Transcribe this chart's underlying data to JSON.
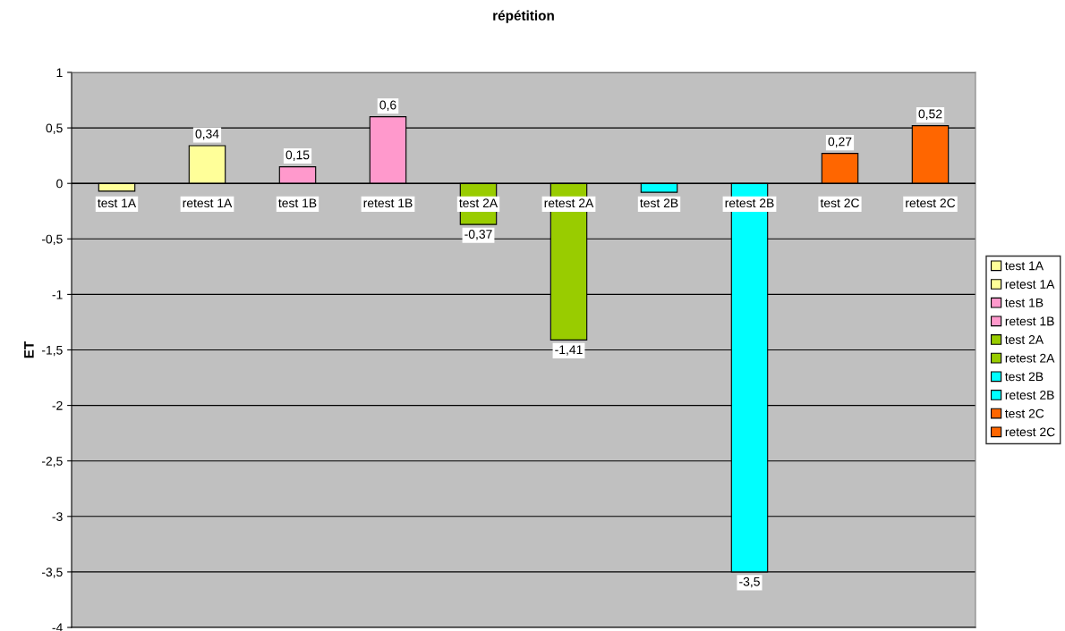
{
  "chart_data": {
    "type": "bar",
    "title": "répétition",
    "ylabel": "ET",
    "categories": [
      null
    ],
    "series": [
      {
        "name": "test 1A",
        "color": "#ffff99",
        "values": [
          -0.07
        ],
        "value_labels": [
          null
        ]
      },
      {
        "name": "retest 1A",
        "color": "#ffff99",
        "values": [
          0.34
        ],
        "value_labels": [
          "0,34"
        ]
      },
      {
        "name": "test 1B",
        "color": "#ff99cc",
        "values": [
          0.15
        ],
        "value_labels": [
          "0,15"
        ]
      },
      {
        "name": "retest 1B",
        "color": "#ff99cc",
        "values": [
          0.6
        ],
        "value_labels": [
          "0,6"
        ]
      },
      {
        "name": "test 2A",
        "color": "#99cc00",
        "values": [
          -0.37
        ],
        "value_labels": [
          "-0,37"
        ]
      },
      {
        "name": "retest 2A",
        "color": "#99cc00",
        "values": [
          -1.41
        ],
        "value_labels": [
          "-1,41"
        ]
      },
      {
        "name": "test 2B",
        "color": "#00ffff",
        "values": [
          -0.08
        ],
        "value_labels": [
          null
        ]
      },
      {
        "name": "retest 2B",
        "color": "#00ffff",
        "values": [
          -3.5
        ],
        "value_labels": [
          "-3,5"
        ]
      },
      {
        "name": "test 2C",
        "color": "#ff6600",
        "values": [
          0.27
        ],
        "value_labels": [
          "0,27"
        ]
      },
      {
        "name": "retest 2C",
        "color": "#ff6600",
        "values": [
          0.52
        ],
        "value_labels": [
          "0,52"
        ]
      }
    ],
    "ylim": [
      -4,
      1
    ],
    "yticks": [
      {
        "value": -4,
        "label": "-4"
      },
      {
        "value": -3.5,
        "label": "-3,5"
      },
      {
        "value": -3,
        "label": "-3"
      },
      {
        "value": -2.5,
        "label": "-2,5"
      },
      {
        "value": -2,
        "label": "-2"
      },
      {
        "value": -1.5,
        "label": "-1,5"
      },
      {
        "value": -1,
        "label": "-1"
      },
      {
        "value": -0.5,
        "label": "-0,5"
      },
      {
        "value": 0,
        "label": "0"
      },
      {
        "value": 0.5,
        "label": "0,5"
      },
      {
        "value": 1,
        "label": "1"
      }
    ],
    "grid": "y",
    "legend": "right"
  }
}
